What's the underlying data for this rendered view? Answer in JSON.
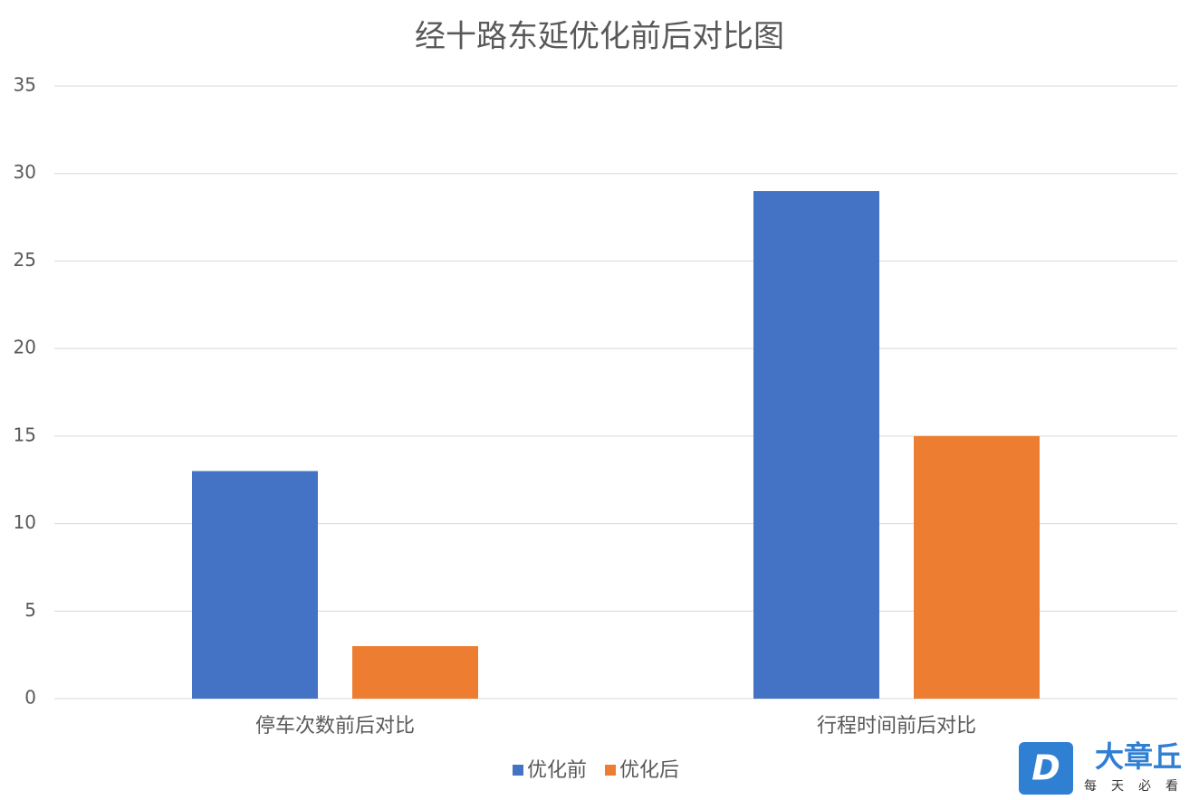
{
  "chart_data": {
    "type": "bar",
    "title": "经十路东延优化前后对比图",
    "categories": [
      "停车次数前后对比",
      "行程时间前后对比"
    ],
    "series": [
      {
        "name": "优化前",
        "color": "#4472c4",
        "values": [
          13,
          29
        ]
      },
      {
        "name": "优化后",
        "color": "#ed7d31",
        "values": [
          3,
          15
        ]
      }
    ],
    "ylim": [
      0,
      35
    ],
    "yticks": [
      0,
      5,
      10,
      15,
      20,
      25,
      30,
      35
    ],
    "grid": true,
    "legend": "bottom"
  },
  "watermark": {
    "logo": "D",
    "brand": "大章丘",
    "slogan": "每天必看"
  }
}
